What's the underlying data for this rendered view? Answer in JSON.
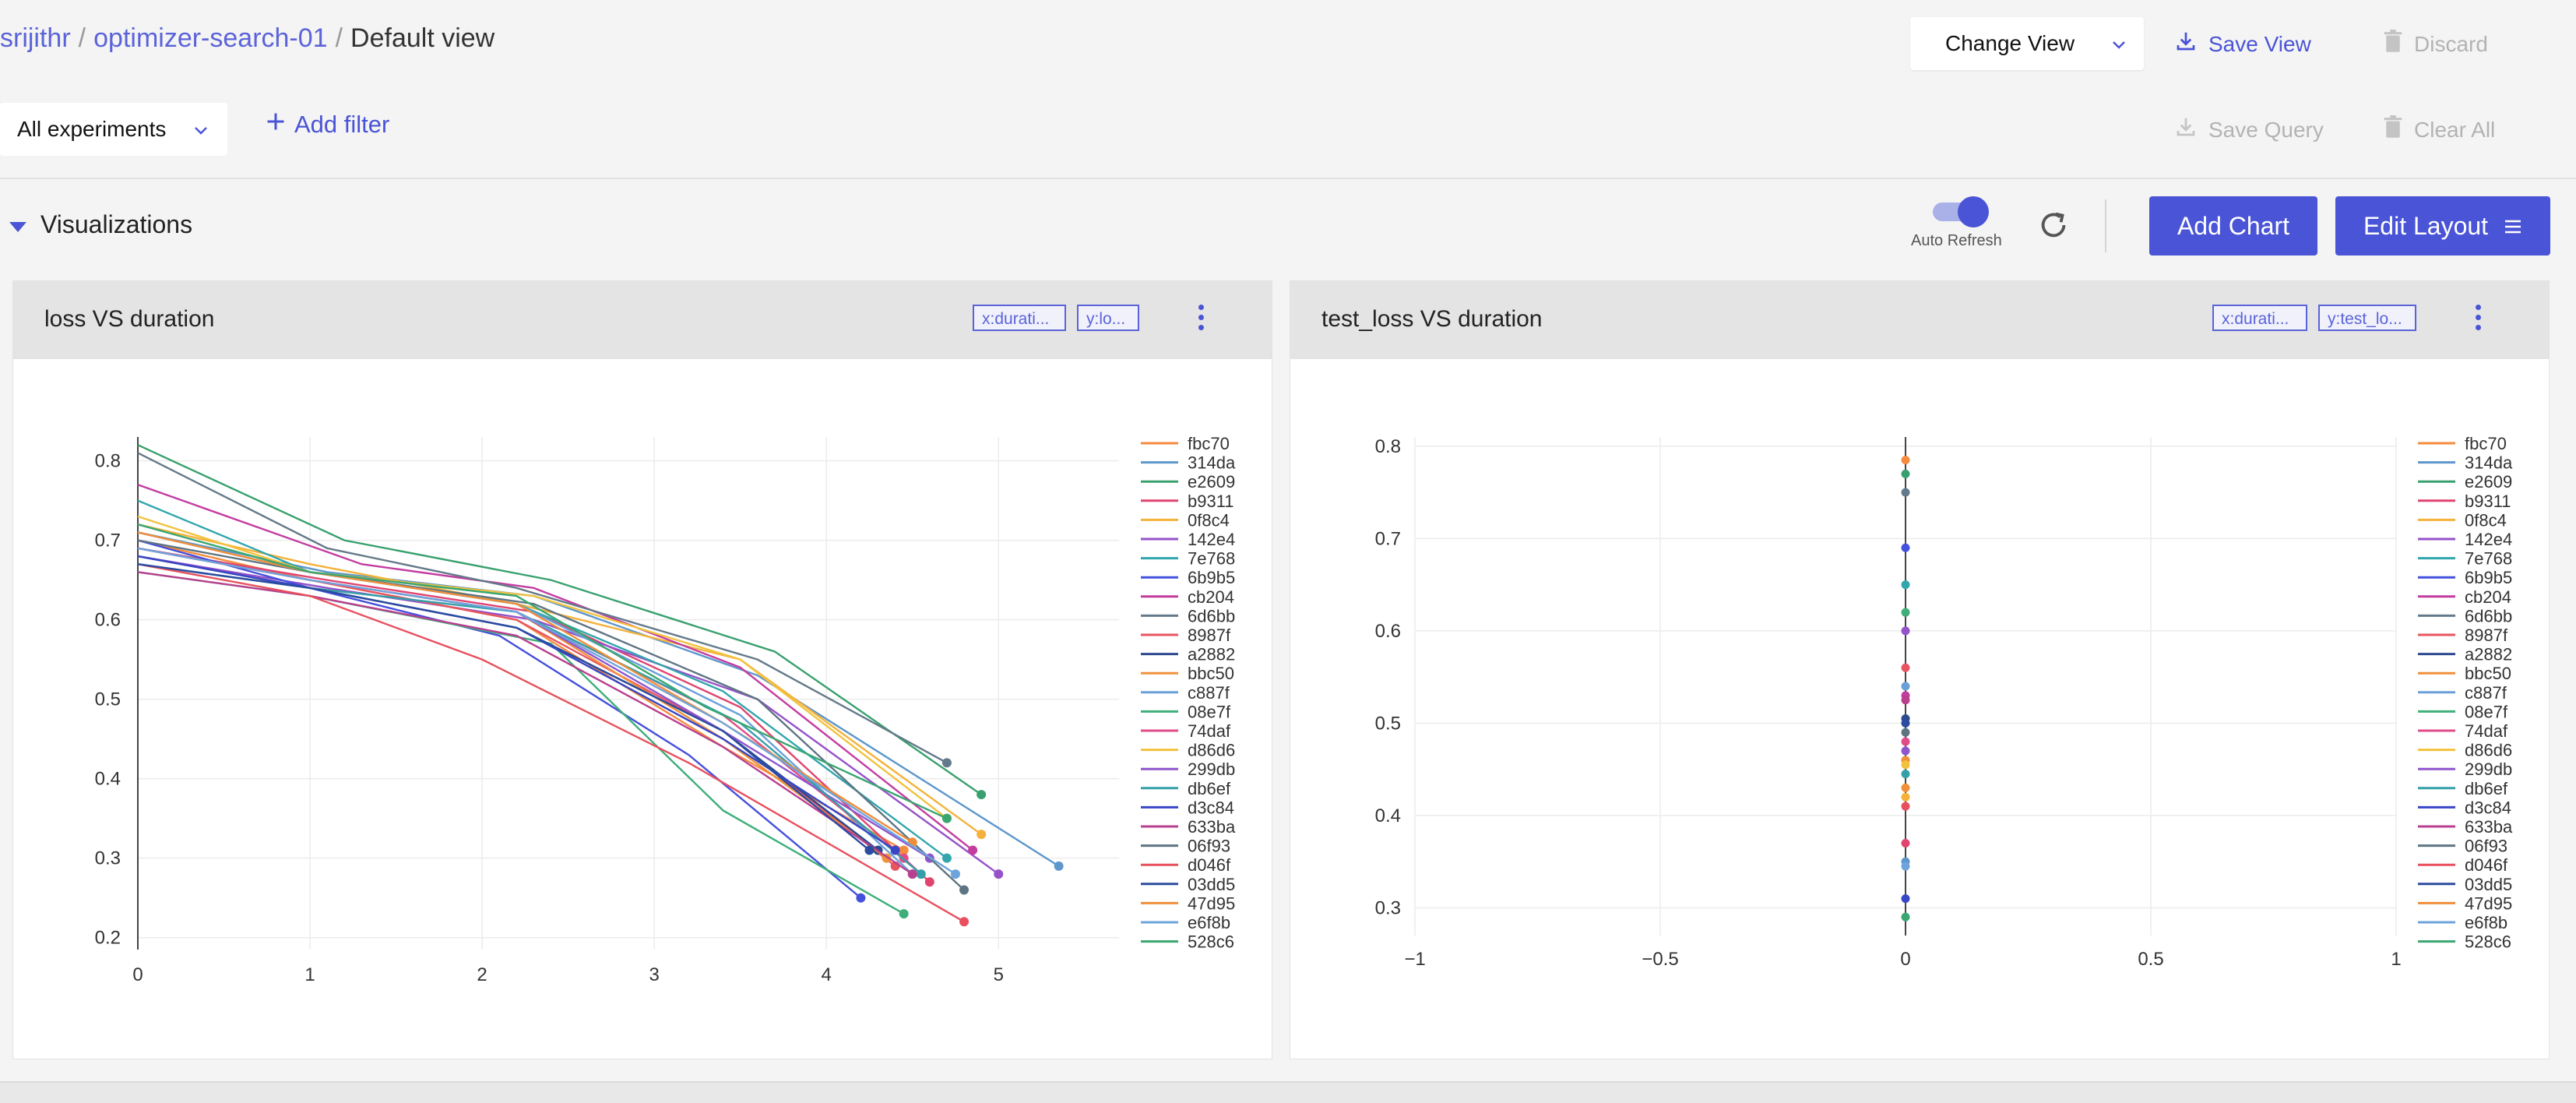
{
  "breadcrumb": {
    "user": "srijithr",
    "experiment": "optimizer-search-01",
    "view": "Default view",
    "separator": "/"
  },
  "header": {
    "change_view": "Change View",
    "save_view": "Save View",
    "discard": "Discard"
  },
  "filter_bar": {
    "experiments_select": "All experiments",
    "add_filter": "Add filter",
    "save_query": "Save Query",
    "clear_all": "Clear All"
  },
  "visualizations": {
    "title": "Visualizations",
    "auto_refresh_label": "Auto Refresh",
    "auto_refresh_on": true,
    "add_chart": "Add Chart",
    "edit_layout": "Edit Layout"
  },
  "colors": {
    "accent": "#4a54d6",
    "disabled": "#b3b3b3"
  },
  "legend": [
    "fbc70",
    "314da",
    "e2609",
    "b9311",
    "0f8c4",
    "142e4",
    "7e768",
    "6b9b5",
    "cb204",
    "6d6bb",
    "8987f",
    "a2882",
    "bbc50",
    "c887f",
    "08e7f",
    "74daf",
    "d86d6",
    "299db",
    "db6ef",
    "d3c84",
    "633ba",
    "06f93",
    "d046f",
    "03dd5",
    "47d95",
    "e6f8b",
    "528c6"
  ],
  "series_colors": [
    "#f58b3c",
    "#5d97cc",
    "#38a06e",
    "#e0446f",
    "#f4b23a",
    "#9652c9",
    "#32a6ad",
    "#4550dc",
    "#c33ca0",
    "#647a8a",
    "#e85560",
    "#2d4a8f",
    "#f0903a",
    "#6aa0d8",
    "#3fae7a",
    "#e04c89",
    "#f2c23e",
    "#8f55cc",
    "#33a0a8",
    "#3946c6",
    "#b93f8f",
    "#5e7483",
    "#e8505e",
    "#2c4ca0",
    "#f08e3a",
    "#6ea4dc",
    "#3aa672"
  ],
  "chart_data": [
    {
      "type": "line",
      "title": "loss VS duration",
      "x_chip": "x:durati...",
      "y_chip": "y:lo...",
      "xlim": [
        0,
        5.7
      ],
      "ylim": [
        0.185,
        0.83
      ],
      "x_ticks": [
        "0",
        "1",
        "2",
        "3",
        "4",
        "5"
      ],
      "y_ticks": [
        "0.2",
        "0.3",
        "0.4",
        "0.5",
        "0.6",
        "0.7",
        "0.8"
      ],
      "series": [
        {
          "name": "fbc70",
          "x": [
            0,
            1.0,
            2.2,
            3.4,
            4.45
          ],
          "y": [
            0.7,
            0.65,
            0.6,
            0.44,
            0.31
          ]
        },
        {
          "name": "314da",
          "x": [
            0,
            1.1,
            2.3,
            3.6,
            5.35
          ],
          "y": [
            0.71,
            0.66,
            0.63,
            0.53,
            0.29
          ]
        },
        {
          "name": "e2609",
          "x": [
            0,
            1.2,
            2.4,
            3.7,
            4.9
          ],
          "y": [
            0.82,
            0.7,
            0.65,
            0.56,
            0.38
          ]
        },
        {
          "name": "b9311",
          "x": [
            0,
            1.1,
            2.3,
            3.5,
            4.6
          ],
          "y": [
            0.69,
            0.65,
            0.61,
            0.49,
            0.27
          ]
        },
        {
          "name": "0f8c4",
          "x": [
            0,
            1.0,
            2.2,
            3.5,
            4.9
          ],
          "y": [
            0.72,
            0.67,
            0.62,
            0.55,
            0.33
          ]
        },
        {
          "name": "142e4",
          "x": [
            0,
            1.1,
            2.3,
            3.6,
            5.0
          ],
          "y": [
            0.68,
            0.64,
            0.6,
            0.5,
            0.28
          ]
        },
        {
          "name": "7e768",
          "x": [
            0,
            1.0,
            2.2,
            3.4,
            4.7
          ],
          "y": [
            0.75,
            0.66,
            0.62,
            0.51,
            0.3
          ]
        },
        {
          "name": "6b9b5",
          "x": [
            0,
            1.0,
            2.1,
            3.2,
            4.2
          ],
          "y": [
            0.7,
            0.64,
            0.58,
            0.43,
            0.25
          ]
        },
        {
          "name": "cb204",
          "x": [
            0,
            1.3,
            2.3,
            3.5,
            4.85
          ],
          "y": [
            0.77,
            0.67,
            0.64,
            0.54,
            0.31
          ]
        },
        {
          "name": "6d6bb",
          "x": [
            0,
            1.1,
            2.2,
            3.6,
            4.7
          ],
          "y": [
            0.81,
            0.69,
            0.64,
            0.55,
            0.42
          ]
        },
        {
          "name": "8987f",
          "x": [
            0,
            1.0,
            2.2,
            3.4,
            4.4
          ],
          "y": [
            0.69,
            0.65,
            0.6,
            0.46,
            0.29
          ]
        },
        {
          "name": "a2882",
          "x": [
            0,
            1.0,
            2.2,
            3.4,
            4.3
          ],
          "y": [
            0.68,
            0.64,
            0.59,
            0.46,
            0.31
          ]
        },
        {
          "name": "bbc50",
          "x": [
            0,
            1.0,
            2.2,
            3.4,
            4.35
          ],
          "y": [
            0.69,
            0.65,
            0.61,
            0.45,
            0.3
          ]
        },
        {
          "name": "c887f",
          "x": [
            0,
            1.0,
            2.2,
            3.5,
            4.5
          ],
          "y": [
            0.71,
            0.66,
            0.62,
            0.48,
            0.28
          ]
        },
        {
          "name": "08e7f",
          "x": [
            0,
            1.0,
            2.4,
            3.4,
            4.45
          ],
          "y": [
            0.66,
            0.63,
            0.57,
            0.36,
            0.23
          ]
        },
        {
          "name": "74daf",
          "x": [
            0,
            1.0,
            2.2,
            3.4,
            4.45
          ],
          "y": [
            0.69,
            0.65,
            0.61,
            0.48,
            0.3
          ]
        },
        {
          "name": "d86d6",
          "x": [
            0,
            1.0,
            2.3,
            3.5,
            4.7
          ],
          "y": [
            0.73,
            0.66,
            0.63,
            0.55,
            0.35
          ]
        },
        {
          "name": "299db",
          "x": [
            0,
            1.0,
            2.2,
            3.4,
            4.6
          ],
          "y": [
            0.69,
            0.65,
            0.61,
            0.46,
            0.3
          ]
        },
        {
          "name": "db6ef",
          "x": [
            0,
            1.0,
            2.2,
            3.5,
            4.55
          ],
          "y": [
            0.67,
            0.64,
            0.61,
            0.47,
            0.28
          ]
        },
        {
          "name": "d3c84",
          "x": [
            0,
            1.0,
            2.2,
            3.4,
            4.4
          ],
          "y": [
            0.68,
            0.64,
            0.59,
            0.45,
            0.31
          ]
        },
        {
          "name": "633ba",
          "x": [
            0,
            1.0,
            2.2,
            3.4,
            4.5
          ],
          "y": [
            0.66,
            0.63,
            0.58,
            0.44,
            0.28
          ]
        },
        {
          "name": "06f93",
          "x": [
            0,
            1.0,
            2.3,
            3.6,
            4.8
          ],
          "y": [
            0.7,
            0.66,
            0.62,
            0.5,
            0.26
          ]
        },
        {
          "name": "d046f",
          "x": [
            0,
            1.0,
            2.0,
            3.2,
            4.8
          ],
          "y": [
            0.67,
            0.63,
            0.55,
            0.42,
            0.22
          ]
        },
        {
          "name": "03dd5",
          "x": [
            0,
            1.0,
            2.2,
            3.4,
            4.25
          ],
          "y": [
            0.67,
            0.64,
            0.59,
            0.46,
            0.31
          ]
        },
        {
          "name": "47d95",
          "x": [
            0,
            1.0,
            2.2,
            3.4,
            4.5
          ],
          "y": [
            0.71,
            0.66,
            0.62,
            0.47,
            0.32
          ]
        },
        {
          "name": "e6f8b",
          "x": [
            0,
            1.0,
            2.2,
            3.4,
            4.75
          ],
          "y": [
            0.69,
            0.65,
            0.61,
            0.47,
            0.28
          ]
        },
        {
          "name": "528c6",
          "x": [
            0,
            1.0,
            2.2,
            3.3,
            4.7
          ],
          "y": [
            0.72,
            0.66,
            0.63,
            0.49,
            0.35
          ]
        }
      ]
    },
    {
      "type": "scatter",
      "title": "test_loss VS duration",
      "x_chip": "x:durati...",
      "y_chip": "y:test_lo...",
      "xlim": [
        -1,
        1
      ],
      "ylim": [
        0.27,
        0.81
      ],
      "x_ticks": [
        "−1",
        "−0.5",
        "0",
        "0.5",
        "1"
      ],
      "y_ticks": [
        "0.3",
        "0.4",
        "0.5",
        "0.6",
        "0.7",
        "0.8"
      ],
      "x_tick_values": [
        -1,
        -0.5,
        0,
        0.5,
        1
      ],
      "y_tick_values": [
        0.3,
        0.4,
        0.5,
        0.6,
        0.7,
        0.8
      ],
      "points": [
        {
          "name": "fbc70",
          "x": 0,
          "y": 0.785
        },
        {
          "name": "314da",
          "x": 0,
          "y": 0.35
        },
        {
          "name": "e2609",
          "x": 0,
          "y": 0.77
        },
        {
          "name": "b9311",
          "x": 0,
          "y": 0.37
        },
        {
          "name": "0f8c4",
          "x": 0,
          "y": 0.42
        },
        {
          "name": "142e4",
          "x": 0,
          "y": 0.6
        },
        {
          "name": "7e768",
          "x": 0,
          "y": 0.65
        },
        {
          "name": "6b9b5",
          "x": 0,
          "y": 0.69
        },
        {
          "name": "cb204",
          "x": 0,
          "y": 0.53
        },
        {
          "name": "6d6bb",
          "x": 0,
          "y": 0.75
        },
        {
          "name": "8987f",
          "x": 0,
          "y": 0.56
        },
        {
          "name": "a2882",
          "x": 0,
          "y": 0.505
        },
        {
          "name": "bbc50",
          "x": 0,
          "y": 0.46
        },
        {
          "name": "c887f",
          "x": 0,
          "y": 0.54
        },
        {
          "name": "08e7f",
          "x": 0,
          "y": 0.62
        },
        {
          "name": "74daf",
          "x": 0,
          "y": 0.48
        },
        {
          "name": "d86d6",
          "x": 0,
          "y": 0.455
        },
        {
          "name": "299db",
          "x": 0,
          "y": 0.47
        },
        {
          "name": "db6ef",
          "x": 0,
          "y": 0.445
        },
        {
          "name": "d3c84",
          "x": 0,
          "y": 0.31
        },
        {
          "name": "633ba",
          "x": 0,
          "y": 0.525
        },
        {
          "name": "06f93",
          "x": 0,
          "y": 0.49
        },
        {
          "name": "d046f",
          "x": 0,
          "y": 0.41
        },
        {
          "name": "03dd5",
          "x": 0,
          "y": 0.5
        },
        {
          "name": "47d95",
          "x": 0,
          "y": 0.43
        },
        {
          "name": "e6f8b",
          "x": 0,
          "y": 0.345
        },
        {
          "name": "528c6",
          "x": 0,
          "y": 0.29
        }
      ]
    }
  ]
}
